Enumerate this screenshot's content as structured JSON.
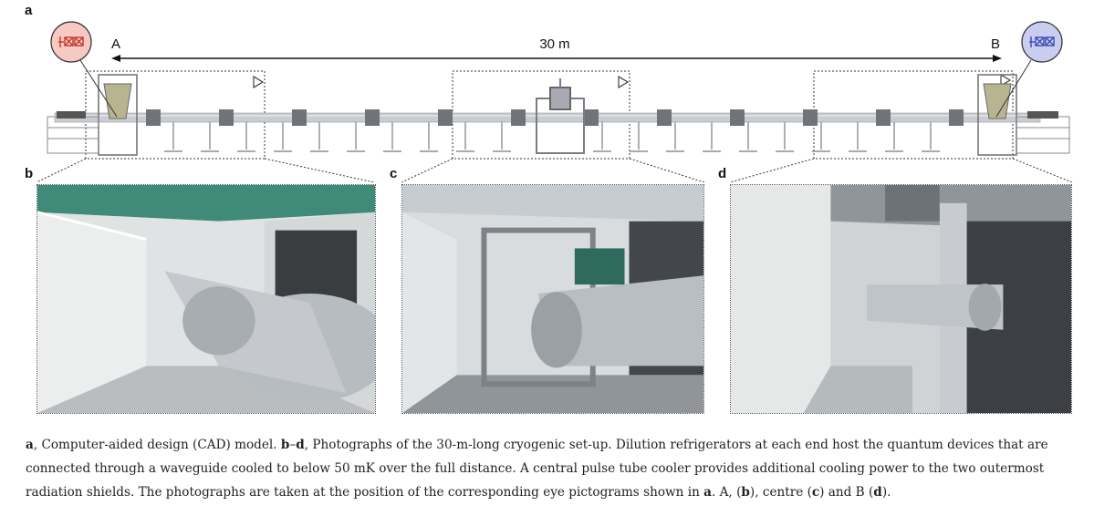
{
  "panels": {
    "a": "a",
    "b": "b",
    "c": "c",
    "d": "d"
  },
  "cad": {
    "end_a_label": "A",
    "end_b_label": "B",
    "distance_label": "30 m",
    "colors": {
      "end_a_circle": "#f6c9c2",
      "end_a_stroke": "#c0392b",
      "end_b_circle": "#c9cdf0",
      "end_b_stroke": "#3b4bb0"
    }
  },
  "photos": [
    {
      "id": "b",
      "description_icon": "photo-end-a"
    },
    {
      "id": "c",
      "description_icon": "photo-centre"
    },
    {
      "id": "d",
      "description_icon": "photo-end-b"
    }
  ],
  "caption": {
    "a_label": "a",
    "a_text": ", Computer-aided design (CAD) model. ",
    "bd_label_b": "b",
    "dash": "–",
    "bd_label_d": "d",
    "bd_text": ", Photographs of the 30-m-long cryogenic set-up. Dilution refrigerators at each end host the quantum devices that are connected through a waveguide cooled to below 50 mK over the full distance. A central pulse tube cooler provides additional cooling power to the two outermost radiation shields. The photographs are taken at the position of the corresponding eye pictograms shown in ",
    "ref_a": "a",
    "mid1": ". A, (",
    "ref_b": "b",
    "mid2": "), centre (",
    "ref_c": "c",
    "mid3": ") and B (",
    "ref_d": "d",
    "end": ")."
  }
}
